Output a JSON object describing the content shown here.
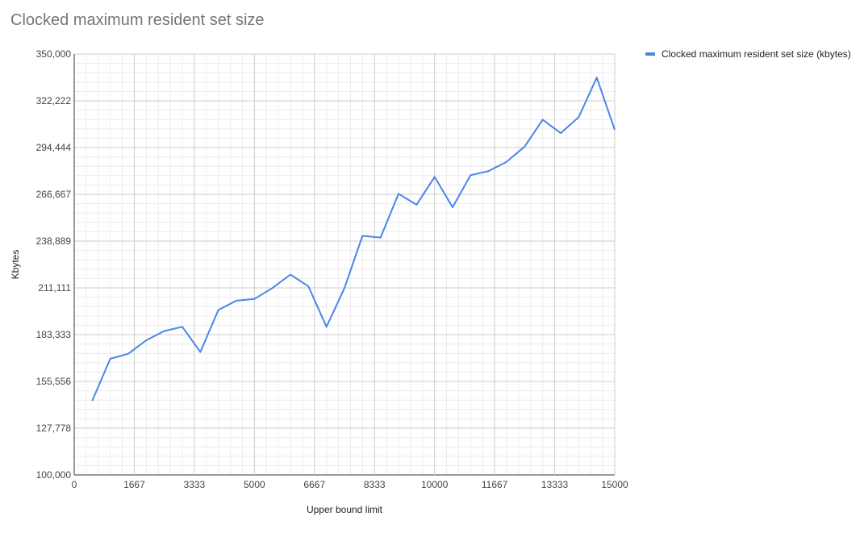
{
  "chart_data": {
    "type": "line",
    "title": "Clocked maximum resident set size",
    "xlabel": "Upper bound limit",
    "ylabel": "Kbytes",
    "xlim": [
      0,
      15000
    ],
    "ylim": [
      100000,
      350000
    ],
    "x_ticks": [
      "0",
      "1667",
      "3333",
      "5000",
      "6667",
      "8333",
      "10000",
      "11667",
      "13333",
      "15000"
    ],
    "y_ticks": [
      "100,000",
      "127,778",
      "155,556",
      "183,333",
      "211,111",
      "238,889",
      "266,667",
      "294,444",
      "322,222",
      "350,000"
    ],
    "grid": true,
    "legend_position": "right",
    "series": [
      {
        "name": "Clocked maximum resident set size (kbytes)",
        "color": "#4a86e8",
        "x": [
          500,
          1000,
          1500,
          2000,
          2500,
          3000,
          3500,
          4000,
          4500,
          5000,
          5500,
          6000,
          6500,
          7000,
          7500,
          8000,
          8500,
          9000,
          9500,
          10000,
          10500,
          11000,
          11500,
          12000,
          12500,
          13000,
          13500,
          14000,
          14500,
          15000
        ],
        "y": [
          144000,
          169000,
          172000,
          180000,
          185500,
          188000,
          173000,
          198000,
          203500,
          204500,
          211000,
          219000,
          212000,
          188000,
          211000,
          242000,
          241000,
          267000,
          260500,
          277000,
          259000,
          278000,
          280500,
          286000,
          295000,
          311000,
          303000,
          312500,
          336000,
          305000
        ]
      }
    ]
  }
}
